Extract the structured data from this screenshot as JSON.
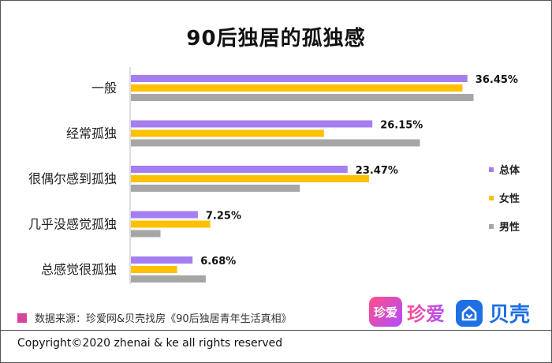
{
  "chart_data": {
    "type": "bar",
    "orientation": "horizontal",
    "title": "90后独居的孤独感",
    "categories": [
      "一般",
      "经常孤独",
      "很偶尔感到孤独",
      "几乎没感觉孤独",
      "总感觉很孤独"
    ],
    "series": [
      {
        "name": "总体",
        "color": "#a57ef0",
        "values": [
          36.45,
          26.15,
          23.47,
          7.25,
          6.68
        ]
      },
      {
        "name": "女性",
        "color": "#ffc000",
        "values": [
          35.9,
          20.9,
          25.8,
          8.6,
          5.0
        ]
      },
      {
        "name": "男性",
        "color": "#a6a6a6",
        "values": [
          37.1,
          31.3,
          18.3,
          3.2,
          8.1
        ]
      }
    ],
    "value_labels": [
      "36.45%",
      "26.15%",
      "23.47%",
      "7.25%",
      "6.68%"
    ],
    "xlim": [
      0,
      38
    ],
    "legend_position": "right",
    "grid": false
  },
  "source": "数据来源：珍爱网&贝壳找房《90后独居青年生活真相》",
  "copyright": "Copyright©2020 zhenai & ke all rights reserved",
  "logos": {
    "zhenai_box": "珍爱",
    "zhenai_text": "珍爱",
    "ke_text": "贝壳",
    "ke_icon": "house-icon"
  },
  "colors": {
    "source_swatch": "#d6459c",
    "ke_brand": "#1f6fe5"
  }
}
